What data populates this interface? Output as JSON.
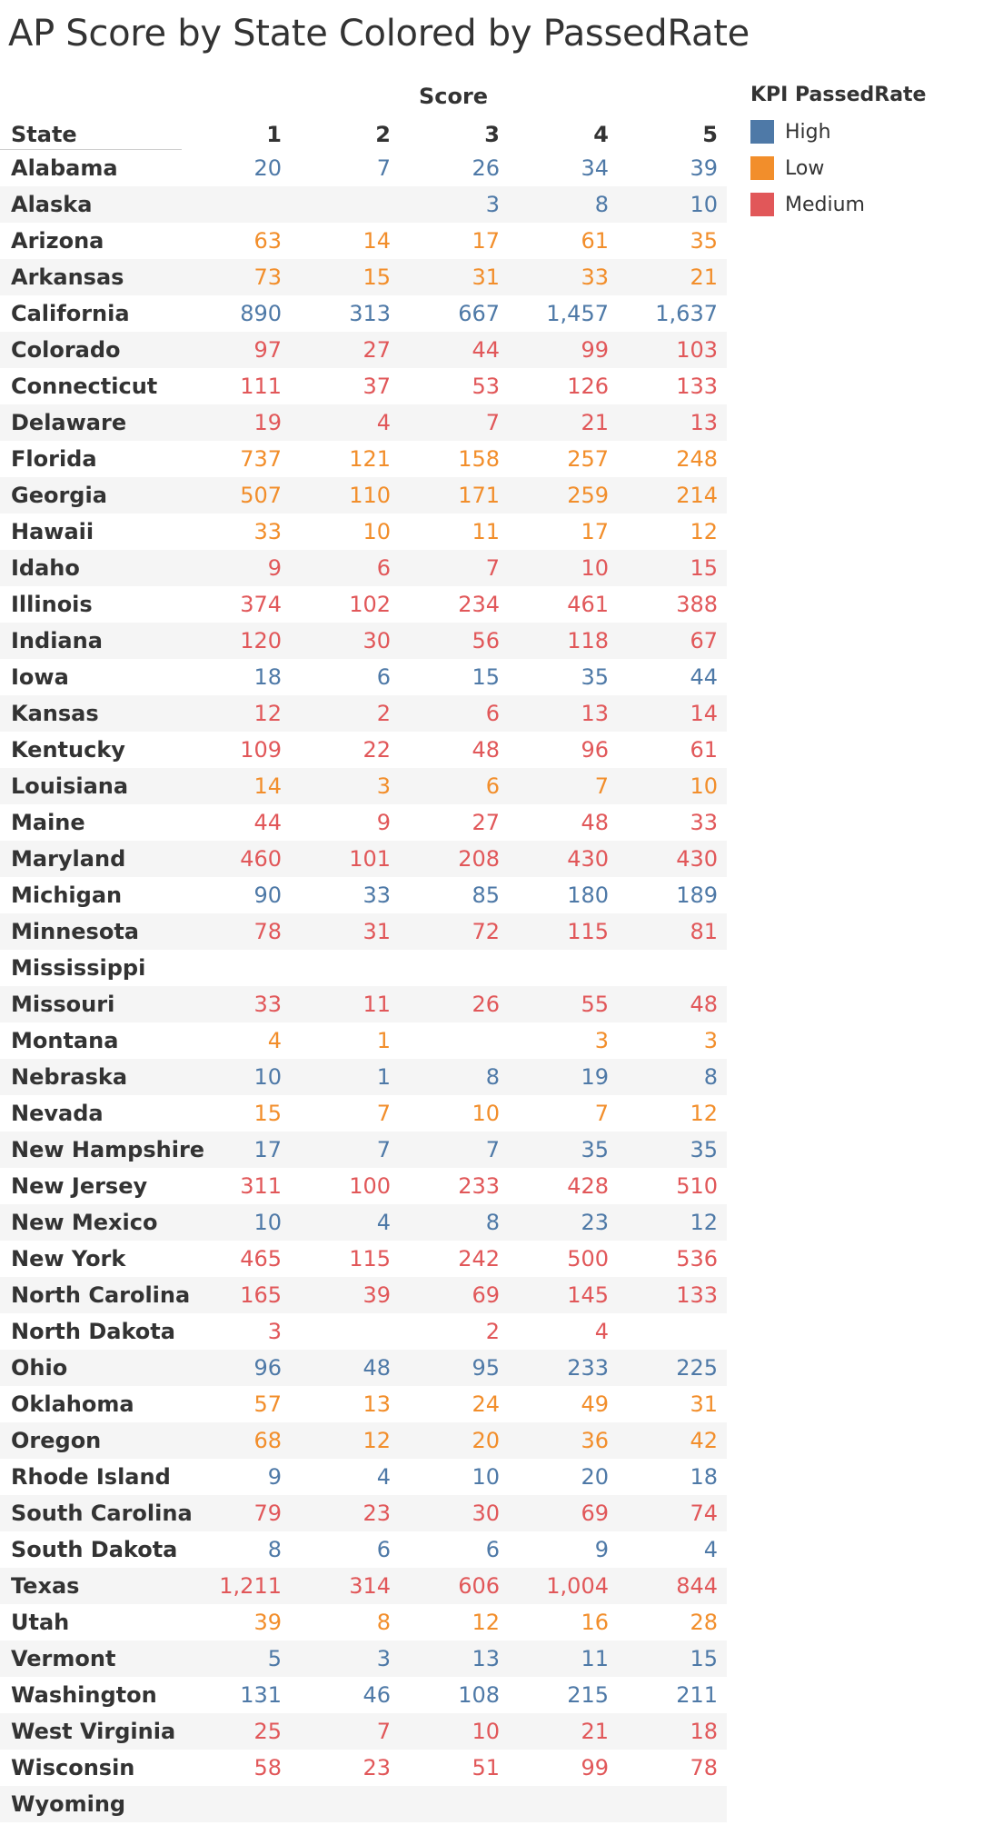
{
  "title": "AP Score by State Colored by PassedRate",
  "chart_data": {
    "type": "table",
    "title": "AP Score by State Colored by PassedRate",
    "column_group_label": "Score",
    "row_header": "State",
    "columns": [
      "1",
      "2",
      "3",
      "4",
      "5"
    ],
    "legend_title": "KPI PassedRate",
    "legend": [
      {
        "name": "High",
        "color": "#4e79a7"
      },
      {
        "name": "Low",
        "color": "#f28e2b"
      },
      {
        "name": "Medium",
        "color": "#e15759"
      }
    ],
    "rows": [
      {
        "state": "Alabama",
        "kpi": "High",
        "values": [
          "20",
          "7",
          "26",
          "34",
          "39"
        ]
      },
      {
        "state": "Alaska",
        "kpi": "High",
        "values": [
          "",
          "",
          "3",
          "8",
          "10"
        ]
      },
      {
        "state": "Arizona",
        "kpi": "Low",
        "values": [
          "63",
          "14",
          "17",
          "61",
          "35"
        ]
      },
      {
        "state": "Arkansas",
        "kpi": "Low",
        "values": [
          "73",
          "15",
          "31",
          "33",
          "21"
        ]
      },
      {
        "state": "California",
        "kpi": "High",
        "values": [
          "890",
          "313",
          "667",
          "1,457",
          "1,637"
        ]
      },
      {
        "state": "Colorado",
        "kpi": "Medium",
        "values": [
          "97",
          "27",
          "44",
          "99",
          "103"
        ]
      },
      {
        "state": "Connecticut",
        "kpi": "Medium",
        "values": [
          "111",
          "37",
          "53",
          "126",
          "133"
        ]
      },
      {
        "state": "Delaware",
        "kpi": "Medium",
        "values": [
          "19",
          "4",
          "7",
          "21",
          "13"
        ]
      },
      {
        "state": "Florida",
        "kpi": "Low",
        "values": [
          "737",
          "121",
          "158",
          "257",
          "248"
        ]
      },
      {
        "state": "Georgia",
        "kpi": "Low",
        "values": [
          "507",
          "110",
          "171",
          "259",
          "214"
        ]
      },
      {
        "state": "Hawaii",
        "kpi": "Low",
        "values": [
          "33",
          "10",
          "11",
          "17",
          "12"
        ]
      },
      {
        "state": "Idaho",
        "kpi": "Medium",
        "values": [
          "9",
          "6",
          "7",
          "10",
          "15"
        ]
      },
      {
        "state": "Illinois",
        "kpi": "Medium",
        "values": [
          "374",
          "102",
          "234",
          "461",
          "388"
        ]
      },
      {
        "state": "Indiana",
        "kpi": "Medium",
        "values": [
          "120",
          "30",
          "56",
          "118",
          "67"
        ]
      },
      {
        "state": "Iowa",
        "kpi": "High",
        "values": [
          "18",
          "6",
          "15",
          "35",
          "44"
        ]
      },
      {
        "state": "Kansas",
        "kpi": "Medium",
        "values": [
          "12",
          "2",
          "6",
          "13",
          "14"
        ]
      },
      {
        "state": "Kentucky",
        "kpi": "Medium",
        "values": [
          "109",
          "22",
          "48",
          "96",
          "61"
        ]
      },
      {
        "state": "Louisiana",
        "kpi": "Low",
        "values": [
          "14",
          "3",
          "6",
          "7",
          "10"
        ]
      },
      {
        "state": "Maine",
        "kpi": "Medium",
        "values": [
          "44",
          "9",
          "27",
          "48",
          "33"
        ]
      },
      {
        "state": "Maryland",
        "kpi": "Medium",
        "values": [
          "460",
          "101",
          "208",
          "430",
          "430"
        ]
      },
      {
        "state": "Michigan",
        "kpi": "High",
        "values": [
          "90",
          "33",
          "85",
          "180",
          "189"
        ]
      },
      {
        "state": "Minnesota",
        "kpi": "Medium",
        "values": [
          "78",
          "31",
          "72",
          "115",
          "81"
        ]
      },
      {
        "state": "Mississippi",
        "kpi": "",
        "values": [
          "",
          "",
          "",
          "",
          ""
        ]
      },
      {
        "state": "Missouri",
        "kpi": "Medium",
        "values": [
          "33",
          "11",
          "26",
          "55",
          "48"
        ]
      },
      {
        "state": "Montana",
        "kpi": "Low",
        "values": [
          "4",
          "1",
          "",
          "3",
          "3"
        ]
      },
      {
        "state": "Nebraska",
        "kpi": "High",
        "values": [
          "10",
          "1",
          "8",
          "19",
          "8"
        ]
      },
      {
        "state": "Nevada",
        "kpi": "Low",
        "values": [
          "15",
          "7",
          "10",
          "7",
          "12"
        ]
      },
      {
        "state": "New Hampshire",
        "kpi": "High",
        "values": [
          "17",
          "7",
          "7",
          "35",
          "35"
        ]
      },
      {
        "state": "New Jersey",
        "kpi": "Medium",
        "values": [
          "311",
          "100",
          "233",
          "428",
          "510"
        ]
      },
      {
        "state": "New Mexico",
        "kpi": "High",
        "values": [
          "10",
          "4",
          "8",
          "23",
          "12"
        ]
      },
      {
        "state": "New York",
        "kpi": "Medium",
        "values": [
          "465",
          "115",
          "242",
          "500",
          "536"
        ]
      },
      {
        "state": "North Carolina",
        "kpi": "Medium",
        "values": [
          "165",
          "39",
          "69",
          "145",
          "133"
        ]
      },
      {
        "state": "North Dakota",
        "kpi": "Medium",
        "values": [
          "3",
          "",
          "2",
          "4",
          ""
        ]
      },
      {
        "state": "Ohio",
        "kpi": "High",
        "values": [
          "96",
          "48",
          "95",
          "233",
          "225"
        ]
      },
      {
        "state": "Oklahoma",
        "kpi": "Low",
        "values": [
          "57",
          "13",
          "24",
          "49",
          "31"
        ]
      },
      {
        "state": "Oregon",
        "kpi": "Low",
        "values": [
          "68",
          "12",
          "20",
          "36",
          "42"
        ]
      },
      {
        "state": "Rhode Island",
        "kpi": "High",
        "values": [
          "9",
          "4",
          "10",
          "20",
          "18"
        ]
      },
      {
        "state": "South Carolina",
        "kpi": "Medium",
        "values": [
          "79",
          "23",
          "30",
          "69",
          "74"
        ]
      },
      {
        "state": "South Dakota",
        "kpi": "High",
        "values": [
          "8",
          "6",
          "6",
          "9",
          "4"
        ]
      },
      {
        "state": "Texas",
        "kpi": "Medium",
        "values": [
          "1,211",
          "314",
          "606",
          "1,004",
          "844"
        ]
      },
      {
        "state": "Utah",
        "kpi": "Low",
        "values": [
          "39",
          "8",
          "12",
          "16",
          "28"
        ]
      },
      {
        "state": "Vermont",
        "kpi": "High",
        "values": [
          "5",
          "3",
          "13",
          "11",
          "15"
        ]
      },
      {
        "state": "Washington",
        "kpi": "High",
        "values": [
          "131",
          "46",
          "108",
          "215",
          "211"
        ]
      },
      {
        "state": "West Virginia",
        "kpi": "Medium",
        "values": [
          "25",
          "7",
          "10",
          "21",
          "18"
        ]
      },
      {
        "state": "Wisconsin",
        "kpi": "Medium",
        "values": [
          "58",
          "23",
          "51",
          "99",
          "78"
        ]
      },
      {
        "state": "Wyoming",
        "kpi": "",
        "values": [
          "",
          "",
          "",
          "",
          ""
        ]
      }
    ]
  }
}
